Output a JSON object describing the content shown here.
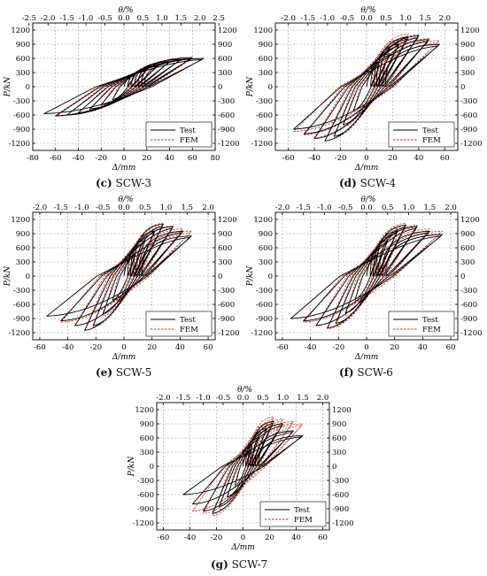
{
  "figure": {
    "captions": [
      {
        "letter": "(c)",
        "name": "SCW-3"
      },
      {
        "letter": "(d)",
        "name": "SCW-4"
      },
      {
        "letter": "(e)",
        "name": "SCW-5"
      },
      {
        "letter": "(f)",
        "name": "SCW-6"
      },
      {
        "letter": "(g)",
        "name": "SCW-7"
      }
    ]
  },
  "colors": {
    "test": "#000000",
    "fem": "#c0392b",
    "grid": "#9a9a9a"
  },
  "chart_data": [
    {
      "id": "SCW-3",
      "type": "line",
      "xlabel": "Δ/mm",
      "ylabel": "P/kN",
      "top_label": "θ/%",
      "xlim": [
        -80,
        80
      ],
      "xticks": [
        -80,
        -60,
        -40,
        -20,
        0,
        20,
        40,
        60,
        80
      ],
      "top_ticks": [
        "-2.5",
        "-2.0",
        "-1.5",
        "-1.0",
        "-0.5",
        "0.0",
        "0.5",
        "1.0",
        "1.5",
        "2.0",
        "2.5"
      ],
      "top_scale": 33.3,
      "ylim": [
        -1350,
        1350
      ],
      "yticks": [
        -1200,
        -900,
        -600,
        -300,
        0,
        300,
        600,
        900,
        1200
      ],
      "grid": true,
      "legend_position": "lower-right",
      "series": [
        {
          "name": "Test",
          "style": "solid",
          "peaks_pos": [
            [
              10,
              250
            ],
            [
              20,
              360
            ],
            [
              30,
              450
            ],
            [
              40,
              530
            ],
            [
              50,
              580
            ],
            [
              60,
              620
            ],
            [
              70,
              600
            ]
          ],
          "peaks_neg": [
            [
              -10,
              -270
            ],
            [
              -20,
              -380
            ],
            [
              -30,
              -470
            ],
            [
              -40,
              -550
            ],
            [
              -50,
              -600
            ],
            [
              -60,
              -620
            ],
            [
              -70,
              -570
            ]
          ]
        },
        {
          "name": "FEM",
          "style": "dashed",
          "peaks_pos": [
            [
              10,
              270
            ],
            [
              20,
              380
            ],
            [
              30,
              470
            ],
            [
              40,
              540
            ],
            [
              50,
              590
            ],
            [
              60,
              600
            ]
          ],
          "peaks_neg": [
            [
              -10,
              -280
            ],
            [
              -20,
              -400
            ],
            [
              -30,
              -490
            ],
            [
              -40,
              -560
            ],
            [
              -50,
              -600
            ],
            [
              -60,
              -610
            ]
          ]
        }
      ]
    },
    {
      "id": "SCW-4",
      "type": "line",
      "xlabel": "Δ/mm",
      "ylabel": "P/kN",
      "top_label": "θ/%",
      "xlim": [
        -70,
        70
      ],
      "xticks": [
        -60,
        -40,
        -20,
        0,
        20,
        40,
        60
      ],
      "top_ticks": [
        "-2.0",
        "-1.5",
        "-1.0",
        "-0.5",
        "0.0",
        "0.5",
        "1.0",
        "1.5",
        "2.0"
      ],
      "top_scale": 30,
      "ylim": [
        -1350,
        1350
      ],
      "yticks": [
        -1200,
        -900,
        -600,
        -300,
        0,
        300,
        600,
        900,
        1200
      ],
      "grid": true,
      "legend_position": "lower-right",
      "series": [
        {
          "name": "Test",
          "style": "solid",
          "peaks_pos": [
            [
              10,
              450
            ],
            [
              18,
              700
            ],
            [
              25,
              900
            ],
            [
              32,
              1050
            ],
            [
              40,
              1080
            ],
            [
              48,
              1000
            ],
            [
              56,
              900
            ]
          ],
          "peaks_neg": [
            [
              -10,
              -500
            ],
            [
              -18,
              -800
            ],
            [
              -25,
              -1050
            ],
            [
              -32,
              -1150
            ],
            [
              -40,
              -1100
            ],
            [
              -48,
              -1000
            ],
            [
              -56,
              -900
            ]
          ]
        },
        {
          "name": "FEM",
          "style": "dashed",
          "peaks_pos": [
            [
              10,
              520
            ],
            [
              18,
              820
            ],
            [
              25,
              1000
            ],
            [
              32,
              1120
            ],
            [
              40,
              1100
            ],
            [
              48,
              1020
            ],
            [
              56,
              980
            ]
          ],
          "peaks_neg": [
            [
              -10,
              -540
            ],
            [
              -18,
              -850
            ],
            [
              -25,
              -1080
            ],
            [
              -32,
              -1150
            ],
            [
              -40,
              -1080
            ],
            [
              -48,
              -1020
            ],
            [
              -56,
              -950
            ]
          ]
        }
      ]
    },
    {
      "id": "SCW-5",
      "type": "line",
      "xlabel": "Δ/mm",
      "ylabel": "P/kN",
      "top_label": "θ/%",
      "xlim": [
        -65,
        65
      ],
      "xticks": [
        -60,
        -40,
        -20,
        0,
        20,
        40,
        60
      ],
      "top_ticks": [
        "-2.0",
        "-1.5",
        "-1.0",
        "-0.5",
        "0.0",
        "0.5",
        "1.0",
        "1.5",
        "2.0"
      ],
      "top_scale": 30,
      "ylim": [
        -1350,
        1350
      ],
      "yticks": [
        -1200,
        -900,
        -600,
        -300,
        0,
        300,
        600,
        900,
        1200
      ],
      "grid": true,
      "legend_position": "lower-right",
      "series": [
        {
          "name": "Test",
          "style": "solid",
          "peaks_pos": [
            [
              8,
              450
            ],
            [
              15,
              750
            ],
            [
              22,
              950
            ],
            [
              28,
              1100
            ],
            [
              35,
              1050
            ],
            [
              42,
              950
            ],
            [
              48,
              850
            ]
          ],
          "peaks_neg": [
            [
              -8,
              -500
            ],
            [
              -15,
              -800
            ],
            [
              -22,
              -1050
            ],
            [
              -28,
              -1150
            ],
            [
              -35,
              -1050
            ],
            [
              -45,
              -950
            ],
            [
              -55,
              -850
            ]
          ]
        },
        {
          "name": "FEM",
          "style": "dashed",
          "peaks_pos": [
            [
              8,
              500
            ],
            [
              15,
              820
            ],
            [
              22,
              1000
            ],
            [
              28,
              1120
            ],
            [
              35,
              1060
            ],
            [
              42,
              1000
            ],
            [
              48,
              950
            ]
          ],
          "peaks_neg": [
            [
              -8,
              -520
            ],
            [
              -15,
              -850
            ],
            [
              -22,
              -1080
            ],
            [
              -28,
              -1150
            ],
            [
              -35,
              -1050
            ],
            [
              -45,
              -980
            ]
          ]
        }
      ]
    },
    {
      "id": "SCW-6",
      "type": "line",
      "xlabel": "Δ/mm",
      "ylabel": "P/kN",
      "top_label": "θ/%",
      "xlim": [
        -65,
        65
      ],
      "xticks": [
        -60,
        -40,
        -20,
        0,
        20,
        40,
        60
      ],
      "top_ticks": [
        "-2.0",
        "-1.5",
        "-1.0",
        "-0.5",
        "0.0",
        "0.5",
        "1.0",
        "1.5",
        "2.0"
      ],
      "top_scale": 30,
      "ylim": [
        -1350,
        1350
      ],
      "yticks": [
        -1200,
        -900,
        -600,
        -300,
        0,
        300,
        600,
        900,
        1200
      ],
      "grid": true,
      "legend_position": "lower-right",
      "series": [
        {
          "name": "Test",
          "style": "solid",
          "peaks_pos": [
            [
              8,
              450
            ],
            [
              15,
              750
            ],
            [
              22,
              950
            ],
            [
              28,
              1080
            ],
            [
              36,
              1050
            ],
            [
              45,
              950
            ],
            [
              54,
              880
            ]
          ],
          "peaks_neg": [
            [
              -8,
              -480
            ],
            [
              -15,
              -780
            ],
            [
              -22,
              -1000
            ],
            [
              -28,
              -1100
            ],
            [
              -36,
              -1050
            ],
            [
              -45,
              -950
            ],
            [
              -54,
              -900
            ]
          ]
        },
        {
          "name": "FEM",
          "style": "dashed",
          "peaks_pos": [
            [
              8,
              500
            ],
            [
              15,
              820
            ],
            [
              22,
              1020
            ],
            [
              28,
              1120
            ],
            [
              36,
              1080
            ],
            [
              45,
              1000
            ],
            [
              54,
              950
            ]
          ],
          "peaks_neg": [
            [
              -8,
              -520
            ],
            [
              -15,
              -850
            ],
            [
              -22,
              -1050
            ],
            [
              -28,
              -1120
            ],
            [
              -36,
              -1050
            ],
            [
              -45,
              -980
            ]
          ]
        }
      ]
    },
    {
      "id": "SCW-7",
      "type": "line",
      "xlabel": "Δ/mm",
      "ylabel": "P/kN",
      "top_label": "θ/%",
      "xlim": [
        -65,
        65
      ],
      "xticks": [
        -60,
        -40,
        -20,
        0,
        20,
        40,
        60
      ],
      "top_ticks": [
        "-2.0",
        "-1.5",
        "-1.0",
        "-0.5",
        "0.0",
        "0.5",
        "1.0",
        "1.5",
        "2.0"
      ],
      "top_scale": 30,
      "ylim": [
        -1350,
        1350
      ],
      "yticks": [
        -1200,
        -900,
        -600,
        -300,
        0,
        300,
        600,
        900,
        1200
      ],
      "grid": true,
      "legend_position": "lower-right",
      "series": [
        {
          "name": "Test",
          "style": "solid",
          "peaks_pos": [
            [
              6,
              350
            ],
            [
              12,
              600
            ],
            [
              18,
              800
            ],
            [
              23,
              950
            ],
            [
              30,
              900
            ],
            [
              38,
              750
            ],
            [
              45,
              650
            ]
          ],
          "peaks_neg": [
            [
              -6,
              -400
            ],
            [
              -12,
              -650
            ],
            [
              -18,
              -850
            ],
            [
              -23,
              -1000
            ],
            [
              -30,
              -950
            ],
            [
              -38,
              -800
            ],
            [
              -45,
              -600
            ]
          ]
        },
        {
          "name": "FEM",
          "style": "dashed",
          "peaks_pos": [
            [
              6,
              420
            ],
            [
              12,
              700
            ],
            [
              18,
              900
            ],
            [
              23,
              1050
            ],
            [
              30,
              1000
            ],
            [
              38,
              950
            ],
            [
              45,
              900
            ]
          ],
          "peaks_neg": [
            [
              -6,
              -450
            ],
            [
              -12,
              -720
            ],
            [
              -18,
              -920
            ],
            [
              -23,
              -1050
            ],
            [
              -30,
              -1000
            ],
            [
              -38,
              -950
            ]
          ]
        }
      ]
    }
  ]
}
